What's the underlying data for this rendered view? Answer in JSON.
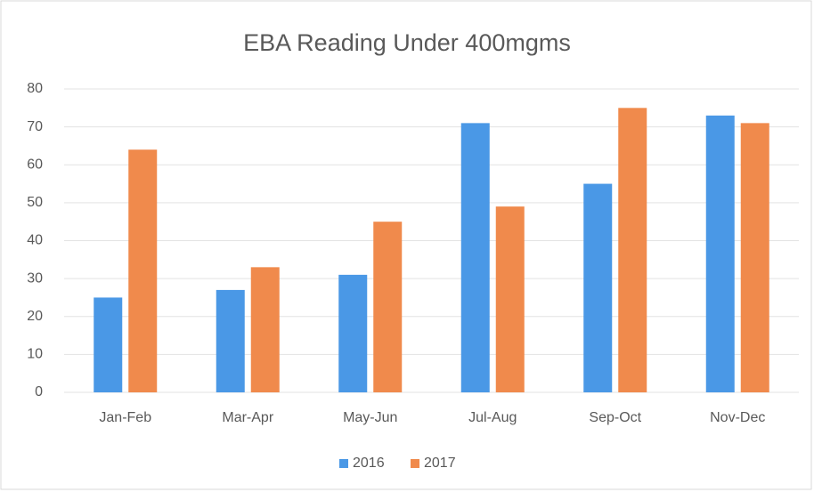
{
  "chart_data": {
    "type": "bar",
    "title": "EBA Reading Under 400mgms",
    "categories": [
      "Jan-Feb",
      "Mar-Apr",
      "May-Jun",
      "Jul-Aug",
      "Sep-Oct",
      "Nov-Dec"
    ],
    "series": [
      {
        "name": "2016",
        "color": "#4a98e6",
        "values": [
          25,
          27,
          31,
          71,
          55,
          73
        ]
      },
      {
        "name": "2017",
        "color": "#f08a4c",
        "values": [
          64,
          33,
          45,
          49,
          75,
          71
        ]
      }
    ],
    "ylim": [
      0,
      80
    ],
    "yticks": [
      0,
      10,
      20,
      30,
      40,
      50,
      60,
      70,
      80
    ],
    "grid": true,
    "legend": "bottom"
  }
}
